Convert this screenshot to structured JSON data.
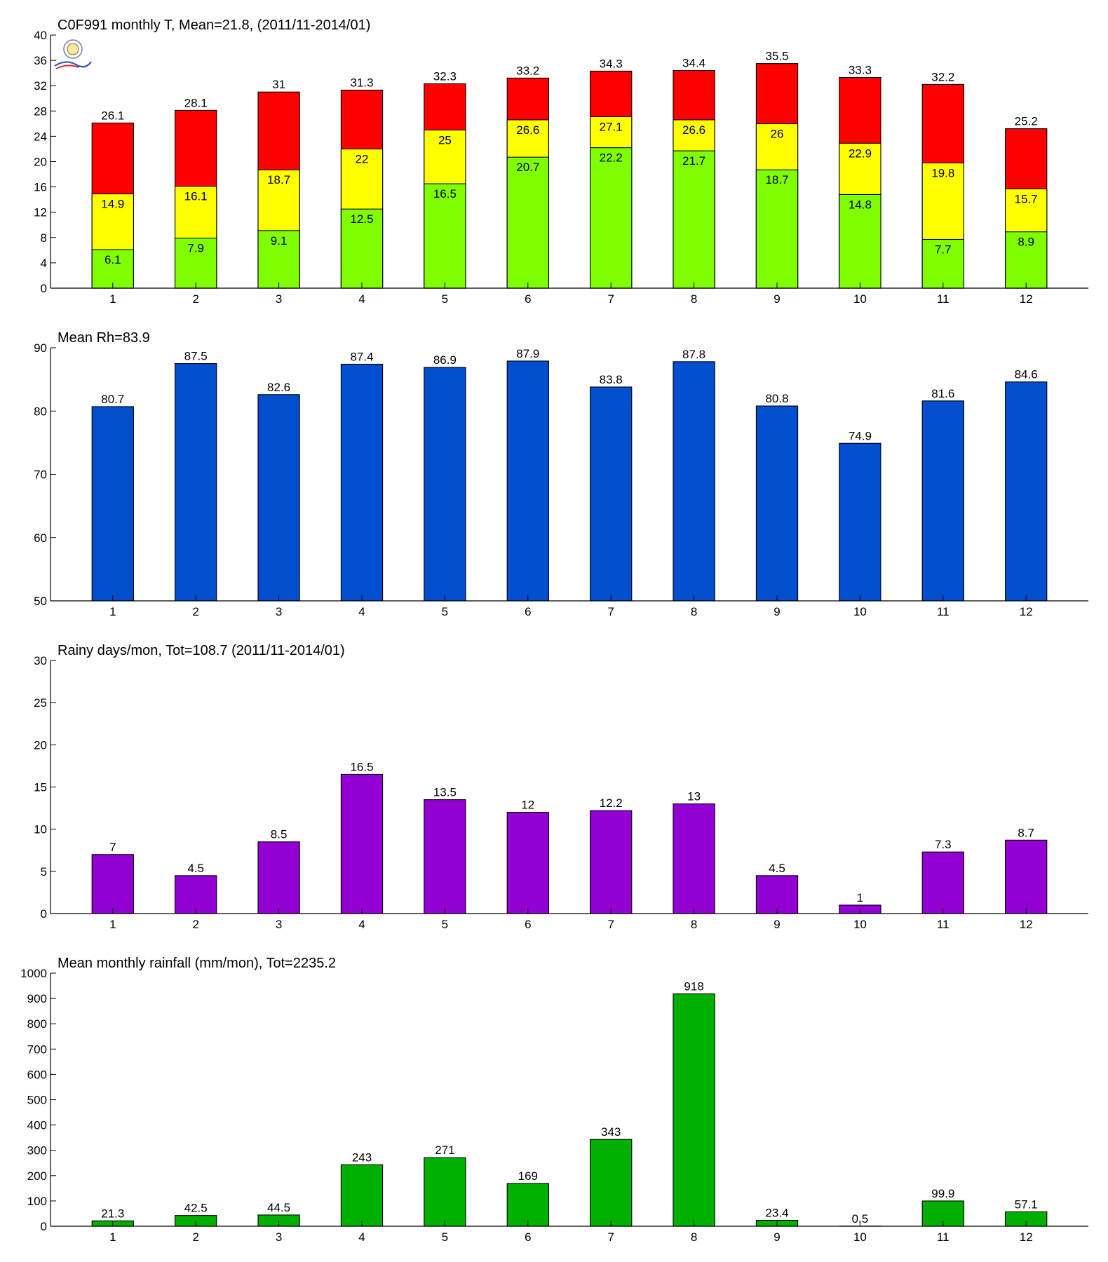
{
  "chart_data": [
    {
      "type": "bar",
      "subtype": "stacked-overlay",
      "title": "C0F991 monthly T, Mean=21.8, (2011/11-2014/01)",
      "categories": [
        "1",
        "2",
        "3",
        "4",
        "5",
        "6",
        "7",
        "8",
        "9",
        "10",
        "11",
        "12"
      ],
      "ylim": [
        0,
        40
      ],
      "yticks": [
        0,
        4,
        8,
        12,
        16,
        20,
        24,
        28,
        32,
        36,
        40
      ],
      "series": [
        {
          "values": [
            26.1,
            28.1,
            31,
            31.3,
            32.3,
            33.2,
            34.3,
            34.4,
            35.5,
            33.3,
            32.2,
            25.2
          ],
          "labels": [
            "26.1",
            "28.1",
            "31",
            "31.3",
            "32.3",
            "33.2",
            "34.3",
            "34.4",
            "35.5",
            "33.3",
            "32.2",
            "25.2"
          ],
          "color": "#ff0000"
        },
        {
          "values": [
            14.9,
            16.1,
            18.7,
            22,
            25,
            26.6,
            27.1,
            26.6,
            26,
            22.9,
            19.8,
            15.7
          ],
          "labels": [
            "14.9",
            "16.1",
            "18.7",
            "22",
            "25",
            "26.6",
            "27.1",
            "26.6",
            "26",
            "22.9",
            "19.8",
            "15.7"
          ],
          "color": "#ffff00"
        },
        {
          "values": [
            6.1,
            7.9,
            9.1,
            12.5,
            16.5,
            20.7,
            22.2,
            21.7,
            18.7,
            14.8,
            7.7,
            8.9
          ],
          "labels": [
            "6.1",
            "7.9",
            "9.1",
            "12.5",
            "16.5",
            "20.7",
            "22.2",
            "21.7",
            "18.7",
            "14.8",
            "7.7",
            "8.9"
          ],
          "color": "#80ff00"
        }
      ],
      "grid": false
    },
    {
      "type": "bar",
      "title": "Mean Rh=83.9",
      "categories": [
        "1",
        "2",
        "3",
        "4",
        "5",
        "6",
        "7",
        "8",
        "9",
        "10",
        "11",
        "12"
      ],
      "ylim": [
        50,
        90
      ],
      "yticks": [
        50,
        60,
        70,
        80,
        90
      ],
      "values": [
        80.7,
        87.5,
        82.6,
        87.4,
        86.9,
        87.9,
        83.8,
        87.8,
        80.8,
        74.9,
        81.6,
        84.6
      ],
      "labels": [
        "80.7",
        "87.5",
        "82.6",
        "87.4",
        "86.9",
        "87.9",
        "83.8",
        "87.8",
        "80.8",
        "74.9",
        "81.6",
        "84.6"
      ],
      "color": "#004fcf",
      "grid": false
    },
    {
      "type": "bar",
      "title": "Rainy days/mon, Tot=108.7 (2011/11-2014/01)",
      "categories": [
        "1",
        "2",
        "3",
        "4",
        "5",
        "6",
        "7",
        "8",
        "9",
        "10",
        "11",
        "12"
      ],
      "ylim": [
        0,
        30
      ],
      "yticks": [
        0,
        5,
        10,
        15,
        20,
        25,
        30
      ],
      "values": [
        7,
        4.5,
        8.5,
        16.5,
        13.5,
        12,
        12.2,
        13,
        4.5,
        1,
        7.3,
        8.7
      ],
      "labels": [
        "7",
        "4.5",
        "8.5",
        "16.5",
        "13.5",
        "12",
        "12.2",
        "13",
        "4.5",
        "1",
        "7.3",
        "8.7"
      ],
      "color": "#9400d3",
      "grid": false
    },
    {
      "type": "bar",
      "title": "Mean monthly rainfall (mm/mon), Tot=2235.2",
      "categories": [
        "1",
        "2",
        "3",
        "4",
        "5",
        "6",
        "7",
        "8",
        "9",
        "10",
        "11",
        "12"
      ],
      "ylim": [
        0,
        1000
      ],
      "yticks": [
        0,
        100,
        200,
        300,
        400,
        500,
        600,
        700,
        800,
        900,
        1000
      ],
      "values": [
        21.3,
        42.5,
        44.5,
        243,
        271,
        169,
        343,
        918,
        23.4,
        0.5,
        99.9,
        57.1
      ],
      "labels": [
        "21.3",
        "42.5",
        "44.5",
        "243",
        "271",
        "169",
        "343",
        "918",
        "23.4",
        "0.5",
        "99.9",
        "57.1"
      ],
      "color": "#00b000",
      "grid": false
    }
  ]
}
